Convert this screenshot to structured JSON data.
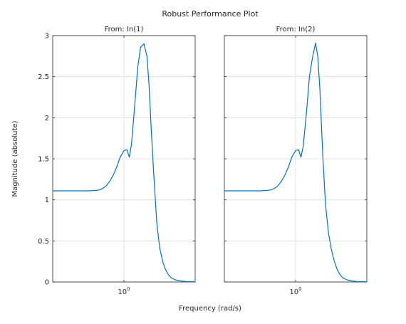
{
  "figure": {
    "title": "Robust Performance Plot",
    "xlabel": "Frequency (rad/s)",
    "ylabel": "Magnitude (absolute)"
  },
  "chart_data": [
    {
      "type": "line",
      "title": "From: In(1)",
      "xscale": "log",
      "xlim": [
        0.316,
        3.162
      ],
      "ylim": [
        0,
        3
      ],
      "yticks": [
        "0",
        "0.5",
        "1",
        "1.5",
        "2",
        "2.5",
        "3"
      ],
      "xticks": [
        {
          "value": 1,
          "base": "10",
          "exp": "0"
        }
      ],
      "grid": true,
      "series": [
        {
          "color": "#0072bd",
          "x": [
            0.316,
            0.4,
            0.5,
            0.56,
            0.63,
            0.67,
            0.71,
            0.75,
            0.79,
            0.84,
            0.89,
            0.94,
            1.0,
            1.05,
            1.09,
            1.13,
            1.19,
            1.25,
            1.31,
            1.38,
            1.45,
            1.5,
            1.55,
            1.62,
            1.7,
            1.78,
            1.87,
            1.96,
            2.05,
            2.15,
            2.3,
            2.5,
            2.75,
            3.162
          ],
          "y": [
            1.11,
            1.11,
            1.11,
            1.11,
            1.115,
            1.12,
            1.14,
            1.17,
            1.22,
            1.3,
            1.4,
            1.52,
            1.6,
            1.61,
            1.52,
            1.68,
            2.15,
            2.62,
            2.86,
            2.9,
            2.75,
            2.4,
            1.9,
            1.3,
            0.72,
            0.42,
            0.25,
            0.15,
            0.09,
            0.05,
            0.025,
            0.012,
            0.005,
            0.002
          ]
        }
      ]
    },
    {
      "type": "line",
      "title": "From: In(2)",
      "xscale": "log",
      "xlim": [
        0.316,
        3.162
      ],
      "ylim": [
        0,
        3
      ],
      "yticks": [
        "0",
        "0.5",
        "1",
        "1.5",
        "2",
        "2.5",
        "3"
      ],
      "xticks": [
        {
          "value": 1,
          "base": "10",
          "exp": "0"
        }
      ],
      "grid": true,
      "series": [
        {
          "color": "#0072bd",
          "x": [
            0.316,
            0.4,
            0.5,
            0.56,
            0.63,
            0.67,
            0.71,
            0.75,
            0.79,
            0.84,
            0.89,
            0.94,
            1.0,
            1.05,
            1.09,
            1.13,
            1.19,
            1.25,
            1.31,
            1.38,
            1.43,
            1.48,
            1.55,
            1.62,
            1.7,
            1.78,
            1.87,
            1.96,
            2.05,
            2.15,
            2.3,
            2.5,
            2.75,
            3.162
          ],
          "y": [
            1.11,
            1.11,
            1.11,
            1.11,
            1.115,
            1.12,
            1.14,
            1.17,
            1.22,
            1.3,
            1.4,
            1.52,
            1.6,
            1.61,
            1.52,
            1.65,
            2.05,
            2.5,
            2.72,
            2.91,
            2.75,
            2.35,
            1.55,
            0.95,
            0.6,
            0.4,
            0.25,
            0.15,
            0.09,
            0.05,
            0.025,
            0.012,
            0.005,
            0.002
          ]
        }
      ]
    }
  ]
}
